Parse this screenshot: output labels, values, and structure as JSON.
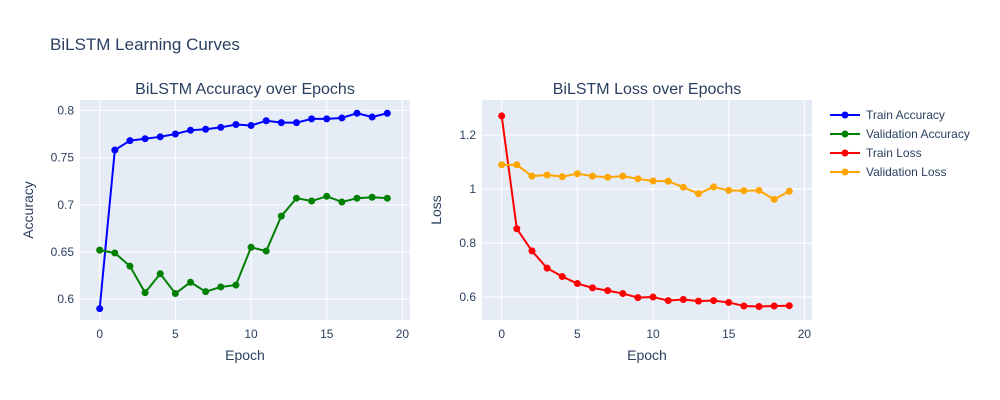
{
  "title": "BiLSTM Learning Curves",
  "chart_data": [
    {
      "type": "line",
      "title": "BiLSTM Accuracy over Epochs",
      "xlabel": "Epoch",
      "ylabel": "Accuracy",
      "xlim": [
        -1.3,
        20.5
      ],
      "ylim": [
        0.578,
        0.811
      ],
      "xticks": [
        0,
        5,
        10,
        15,
        20
      ],
      "xtick_labels": [
        "0",
        "5",
        "10",
        "15",
        "20"
      ],
      "yticks": [
        0.6,
        0.65,
        0.7,
        0.75,
        0.8
      ],
      "ytick_labels": [
        "0.6",
        "0.65",
        "0.7",
        "0.75",
        "0.8"
      ],
      "grid": true,
      "x": [
        0,
        1,
        2,
        3,
        4,
        5,
        6,
        7,
        8,
        9,
        10,
        11,
        12,
        13,
        14,
        15,
        16,
        17,
        18,
        19
      ],
      "series": [
        {
          "name": "Train Accuracy",
          "color": "#0000ff",
          "values": [
            0.59,
            0.758,
            0.768,
            0.77,
            0.772,
            0.775,
            0.779,
            0.78,
            0.782,
            0.785,
            0.784,
            0.789,
            0.787,
            0.787,
            0.791,
            0.791,
            0.792,
            0.797,
            0.793,
            0.797
          ]
        },
        {
          "name": "Validation Accuracy",
          "color": "#008000",
          "values": [
            0.652,
            0.649,
            0.635,
            0.607,
            0.627,
            0.606,
            0.618,
            0.608,
            0.613,
            0.615,
            0.655,
            0.651,
            0.688,
            0.707,
            0.704,
            0.709,
            0.703,
            0.707,
            0.708,
            0.707
          ]
        }
      ]
    },
    {
      "type": "line",
      "title": "BiLSTM Loss over Epochs",
      "xlabel": "Epoch",
      "ylabel": "Loss",
      "xlim": [
        -1.3,
        20.5
      ],
      "ylim": [
        0.515,
        1.33
      ],
      "xticks": [
        0,
        5,
        10,
        15,
        20
      ],
      "xtick_labels": [
        "0",
        "5",
        "10",
        "15",
        "20"
      ],
      "yticks": [
        0.6,
        0.8,
        1.0,
        1.2
      ],
      "ytick_labels": [
        "0.6",
        "0.8",
        "1",
        "1.2"
      ],
      "grid": true,
      "x": [
        0,
        1,
        2,
        3,
        4,
        5,
        6,
        7,
        8,
        9,
        10,
        11,
        12,
        13,
        14,
        15,
        16,
        17,
        18,
        19
      ],
      "series": [
        {
          "name": "Train Loss",
          "color": "#ff0000",
          "values": [
            1.271,
            0.853,
            0.771,
            0.707,
            0.676,
            0.65,
            0.634,
            0.624,
            0.613,
            0.598,
            0.6,
            0.587,
            0.591,
            0.585,
            0.587,
            0.58,
            0.567,
            0.565,
            0.567,
            0.568
          ]
        },
        {
          "name": "Validation Loss",
          "color": "#ffa500",
          "values": [
            1.09,
            1.09,
            1.048,
            1.052,
            1.046,
            1.057,
            1.048,
            1.044,
            1.048,
            1.038,
            1.03,
            1.029,
            1.007,
            0.983,
            1.008,
            0.995,
            0.994,
            0.995,
            0.962,
            0.992
          ]
        }
      ]
    }
  ],
  "legend": {
    "position": "top-right",
    "items": [
      {
        "label": "Train Accuracy",
        "color": "#0000ff"
      },
      {
        "label": "Validation Accuracy",
        "color": "#008000"
      },
      {
        "label": "Train Loss",
        "color": "#ff0000"
      },
      {
        "label": "Validation Loss",
        "color": "#ffa500"
      }
    ]
  },
  "colors": {
    "plot_bg": "#e5ecf6",
    "grid": "#ffffff",
    "text": "#2a3f5f"
  }
}
